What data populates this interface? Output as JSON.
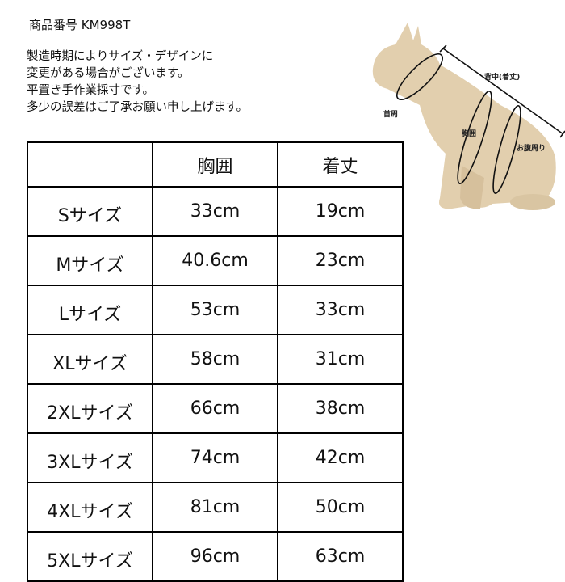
{
  "product_code": "商品番号 KM998T",
  "notes": [
    "製造時期によりサイズ・デザインに",
    "変更がある場合がございます。",
    "平置き手作業採寸です。",
    "多少の誤差はご了承お願い申し上げます。"
  ],
  "diagram": {
    "labels": {
      "back": "背中(着丈)",
      "neck": "首周",
      "chest": "胸囲",
      "belly": "お腹周り"
    }
  },
  "table": {
    "headers": [
      "",
      "胸囲",
      "着丈"
    ],
    "rows": [
      [
        "Sサイズ",
        "33cm",
        "19cm"
      ],
      [
        "Mサイズ",
        "40.6cm",
        "23cm"
      ],
      [
        "Lサイズ",
        "53cm",
        "33cm"
      ],
      [
        "XLサイズ",
        "58cm",
        "31cm"
      ],
      [
        "2XLサイズ",
        "66cm",
        "38cm"
      ],
      [
        "3XLサイズ",
        "74cm",
        "42cm"
      ],
      [
        "4XLサイズ",
        "81cm",
        "50cm"
      ],
      [
        "5XLサイズ",
        "96cm",
        "63cm"
      ]
    ]
  }
}
